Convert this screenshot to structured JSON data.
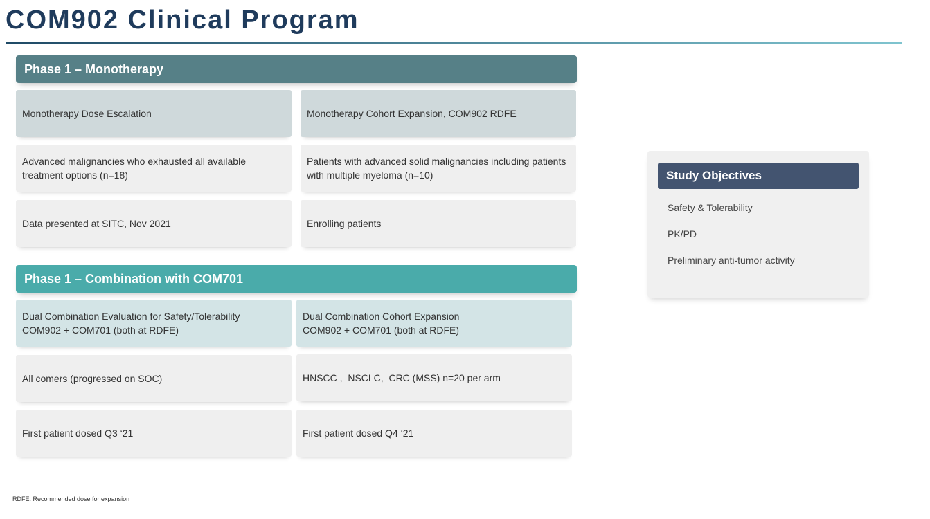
{
  "title": "COM902 Clinical Program",
  "mono": {
    "header": "Phase 1 – Monotherapy",
    "left": [
      "Monotherapy Dose Escalation",
      "Advanced malignancies who exhausted all available treatment options (n=18)",
      "Data presented at SITC, Nov 2021"
    ],
    "right": [
      "Monotherapy Cohort Expansion, COM902 RDFE",
      "Patients with advanced solid malignancies including patients with multiple myeloma (n=10)",
      "Enrolling patients"
    ]
  },
  "combo": {
    "header": "Phase 1 – Combination with COM701",
    "left": [
      "Dual Combination Evaluation for Safety/Tolerability\nCOM902 + COM701 (both at RDFE)",
      "All comers (progressed on SOC)",
      "First patient dosed Q3 ‘21"
    ],
    "right": [
      "Dual Combination Cohort Expansion\nCOM902 + COM701 (both at RDFE)",
      "HNSCC ,  NSCLC,  CRC (MSS) n=20 per arm",
      "First patient dosed Q4 ‘21"
    ]
  },
  "objectives": {
    "header": "Study Objectives",
    "items": [
      "Safety & Tolerability",
      "PK/PD",
      "Preliminary anti-tumor activity"
    ]
  },
  "footnote": "RDFE: Recommended dose for expansion",
  "colors": {
    "title": "#1f3b5c",
    "mono_header": "#568087",
    "combo_header": "#4aabaa",
    "objectives_header": "#435470"
  }
}
